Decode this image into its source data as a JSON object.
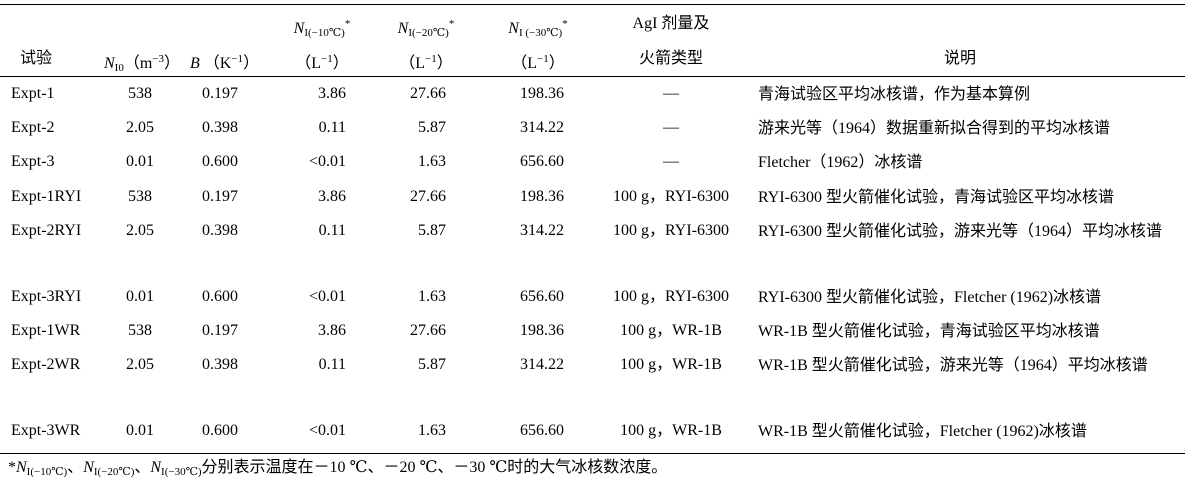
{
  "headers": {
    "exp": "试验",
    "n0": "N_I0（m^-3）",
    "n0_sym": "N",
    "n0_sub": "I0",
    "n0_unit_pre": "（m",
    "n0_unit_sup": "−3",
    "n0_unit_post": "）",
    "b_sym": "B",
    "b_unit_pre": "（K",
    "b_unit_sup": "−1",
    "b_unit_post": "）",
    "n10_sym": "N",
    "n10_sub": "I(−10℃)",
    "n20_sym": "N",
    "n20_sub": "I(−20℃)",
    "n30_sym": "N",
    "n30_sub": "I (−30℃)",
    "star": "*",
    "unit_L_pre": "（L",
    "unit_L_sup": "−1",
    "unit_L_post": "）",
    "agi_line1": "AgI 剂量及",
    "agi_line2": "火箭类型",
    "desc": "说明"
  },
  "rows": [
    {
      "exp": "Expt-1",
      "n0": "538",
      "b": "0.197",
      "n10": "3.86",
      "n20": "27.66",
      "n30": "198.36",
      "agi": "—",
      "desc": "青海试验区平均冰核谱，作为基本算例"
    },
    {
      "exp": "Expt-2",
      "n0": "2.05",
      "b": "0.398",
      "n10": "0.11",
      "n20": "5.87",
      "n30": "314.22",
      "agi": "—",
      "desc": "游来光等（1964）数据重新拟合得到的平均冰核谱"
    },
    {
      "exp": "Expt-3",
      "n0": "0.01",
      "b": "0.600",
      "n10": "<0.01",
      "n20": "1.63",
      "n30": "656.60",
      "agi": "—",
      "desc": "Fletcher（1962）冰核谱"
    },
    {
      "exp": "Expt-1RYI",
      "n0": "538",
      "b": "0.197",
      "n10": "3.86",
      "n20": "27.66",
      "n30": "198.36",
      "agi": "100 g，RYI-6300",
      "desc": "RYI-6300 型火箭催化试验，青海试验区平均冰核谱"
    },
    {
      "exp": "Expt-2RYI",
      "n0": "2.05",
      "b": "0.398",
      "n10": "0.11",
      "n20": "5.87",
      "n30": "314.22",
      "agi": "100 g，RYI-6300",
      "desc": "RYI-6300 型火箭催化试验，游来光等（1964）平均冰核谱"
    },
    {
      "exp": "Expt-3RYI",
      "n0": "0.01",
      "b": "0.600",
      "n10": "<0.01",
      "n20": "1.63",
      "n30": "656.60",
      "agi": "100 g，RYI-6300",
      "desc": "RYI-6300 型火箭催化试验，Fletcher (1962)冰核谱"
    },
    {
      "exp": "Expt-1WR",
      "n0": "538",
      "b": "0.197",
      "n10": "3.86",
      "n20": "27.66",
      "n30": "198.36",
      "agi": "100 g，WR-1B",
      "desc": "WR-1B 型火箭催化试验，青海试验区平均冰核谱"
    },
    {
      "exp": "Expt-2WR",
      "n0": "2.05",
      "b": "0.398",
      "n10": "0.11",
      "n20": "5.87",
      "n30": "314.22",
      "agi": "100 g，WR-1B",
      "desc": "WR-1B 型火箭催化试验，游来光等（1964）平均冰核谱"
    },
    {
      "exp": "Expt-3WR",
      "n0": "0.01",
      "b": "0.600",
      "n10": "<0.01",
      "n20": "1.63",
      "n30": "656.60",
      "agi": "100 g，WR-1B",
      "desc": "WR-1B 型火箭催化试验，Fletcher (1962)冰核谱"
    }
  ],
  "footnote": {
    "star": "*",
    "sym": "N",
    "sub10": "I(−10℃)",
    "sub20": "I(−20℃)",
    "sub30": "I(−30℃)",
    "sep": "、",
    "text": "分别表示温度在－10 ℃、－20 ℃、－30 ℃时的大气冰核数浓度。"
  }
}
